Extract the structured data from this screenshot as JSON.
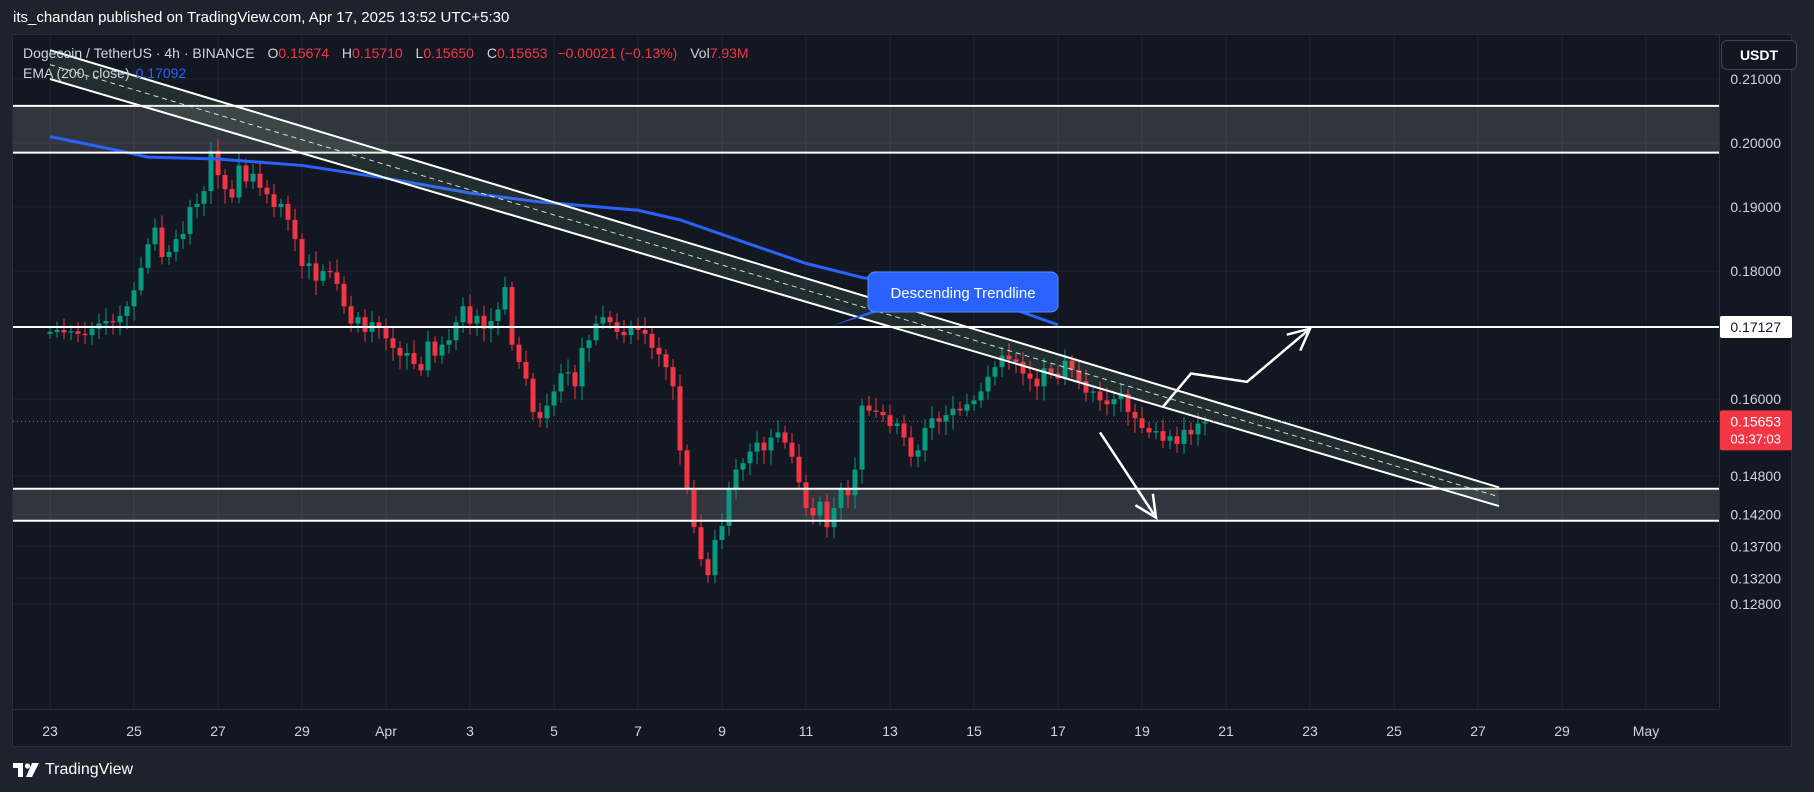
{
  "publisher_line": "its_chandan published on TradingView.com, Apr 17, 2025 13:52 UTC+5:30",
  "legend": {
    "symbol": "Dogecoin / TetherUS · 4h · BINANCE",
    "open_label": "O",
    "open_value": "0.15674",
    "high_label": "H",
    "high_value": "0.15710",
    "low_label": "L",
    "low_value": "0.15650",
    "close_label": "C",
    "close_value": "0.15653",
    "change": "−0.00021 (−0.13%)",
    "vol_label": "Vol",
    "vol_value": "7.93M",
    "ema_label": "EMA (200, close)",
    "ema_value": "0.17092"
  },
  "currency_button": "USDT",
  "branding": "TradingView",
  "colors": {
    "background": "#131722",
    "up": "#089981",
    "down": "#f23645",
    "ema": "#2962ff",
    "annotation": "#ffffff",
    "callout": "#2962ff",
    "grid": "#1f2330",
    "text": "#d1d4dc"
  },
  "chart_data": {
    "type": "candlestick",
    "symbol": "Dogecoin / TetherUS",
    "interval": "4h",
    "exchange": "BINANCE",
    "ylim": [
      0.1255,
      0.2135
    ],
    "y_ticks": [
      "0.21000",
      "0.20000",
      "0.19000",
      "0.18000",
      "0.16000",
      "0.14800",
      "0.14200",
      "0.13700",
      "0.13200",
      "0.12800"
    ],
    "y_tick_values": [
      0.21,
      0.2,
      0.19,
      0.18,
      0.16,
      0.148,
      0.142,
      0.137,
      0.132,
      0.128
    ],
    "x_ticks": [
      {
        "label": "23",
        "t": 0
      },
      {
        "label": "25",
        "t": 12
      },
      {
        "label": "27",
        "t": 24
      },
      {
        "label": "29",
        "t": 36
      },
      {
        "label": "Apr",
        "t": 48
      },
      {
        "label": "3",
        "t": 60
      },
      {
        "label": "5",
        "t": 72
      },
      {
        "label": "7",
        "t": 84
      },
      {
        "label": "9",
        "t": 96
      },
      {
        "label": "11",
        "t": 108
      },
      {
        "label": "13",
        "t": 120
      },
      {
        "label": "15",
        "t": 132
      },
      {
        "label": "17",
        "t": 144
      },
      {
        "label": "19",
        "t": 156
      },
      {
        "label": "21",
        "t": 168
      },
      {
        "label": "23",
        "t": 180
      },
      {
        "label": "25",
        "t": 192
      },
      {
        "label": "27",
        "t": 204
      },
      {
        "label": "29",
        "t": 216
      },
      {
        "label": "May",
        "t": 228
      }
    ],
    "candles_close": [
      0.1705,
      0.1708,
      0.1704,
      0.1706,
      0.1702,
      0.17,
      0.171,
      0.1718,
      0.1722,
      0.172,
      0.173,
      0.1745,
      0.177,
      0.1805,
      0.1842,
      0.1868,
      0.1822,
      0.183,
      0.185,
      0.1858,
      0.19,
      0.1905,
      0.1925,
      0.1988,
      0.195,
      0.1928,
      0.1915,
      0.1965,
      0.194,
      0.1952,
      0.193,
      0.192,
      0.19,
      0.1905,
      0.188,
      0.185,
      0.1808,
      0.1812,
      0.1785,
      0.18,
      0.1798,
      0.178,
      0.1745,
      0.1718,
      0.1728,
      0.1705,
      0.172,
      0.1712,
      0.1695,
      0.168,
      0.1668,
      0.1672,
      0.1655,
      0.1645,
      0.169,
      0.1668,
      0.1685,
      0.1692,
      0.172,
      0.1745,
      0.1718,
      0.173,
      0.171,
      0.1722,
      0.174,
      0.1775,
      0.1685,
      0.1658,
      0.1632,
      0.158,
      0.157,
      0.159,
      0.1612,
      0.164,
      0.1642,
      0.162,
      0.168,
      0.1692,
      0.1718,
      0.1728,
      0.172,
      0.1705,
      0.17,
      0.1712,
      0.1708,
      0.1702,
      0.168,
      0.167,
      0.165,
      0.162,
      0.152,
      0.146,
      0.14,
      0.135,
      0.1325,
      0.138,
      0.1402,
      0.146,
      0.149,
      0.15,
      0.1518,
      0.1532,
      0.152,
      0.154,
      0.1548,
      0.1532,
      0.151,
      0.147,
      0.143,
      0.1418,
      0.144,
      0.14,
      0.143,
      0.146,
      0.145,
      0.149,
      0.159,
      0.1582,
      0.158,
      0.1575,
      0.1558,
      0.1562,
      0.154,
      0.151,
      0.152,
      0.1555,
      0.157,
      0.1565,
      0.1575,
      0.1585,
      0.1582,
      0.1592,
      0.1598,
      0.1612,
      0.1635,
      0.165,
      0.1668,
      0.1662,
      0.1658,
      0.164,
      0.1632,
      0.162,
      0.1648,
      0.164,
      0.1632,
      0.166,
      0.1645,
      0.1628,
      0.161,
      0.1612,
      0.1598,
      0.1592,
      0.16,
      0.1608,
      0.158,
      0.157,
      0.1555,
      0.1548,
      0.155,
      0.1535,
      0.1542,
      0.153,
      0.1552,
      0.1545,
      0.1562,
      0.1565
    ],
    "ema200": [
      {
        "t": 0,
        "v": 0.201
      },
      {
        "t": 9,
        "v": 0.199
      },
      {
        "t": 14,
        "v": 0.1978
      },
      {
        "t": 24,
        "v": 0.1975
      },
      {
        "t": 36,
        "v": 0.1965
      },
      {
        "t": 48,
        "v": 0.1945
      },
      {
        "t": 60,
        "v": 0.1922
      },
      {
        "t": 70,
        "v": 0.1908
      },
      {
        "t": 84,
        "v": 0.1895
      },
      {
        "t": 90,
        "v": 0.188
      },
      {
        "t": 100,
        "v": 0.1842
      },
      {
        "t": 108,
        "v": 0.1812
      },
      {
        "t": 116,
        "v": 0.179
      },
      {
        "t": 126,
        "v": 0.1775
      },
      {
        "t": 134,
        "v": 0.1755
      },
      {
        "t": 144,
        "v": 0.1716
      }
    ],
    "last_price": {
      "value": 0.15653,
      "label": "0.15653",
      "countdown": "03:37:03"
    },
    "level_labels": [
      {
        "value": 0.17127,
        "label": "0.17127"
      }
    ],
    "horizontal_levels": [
      0.2058,
      0.1985,
      0.17127,
      0.146,
      0.141
    ],
    "zones": [
      {
        "top": 0.2058,
        "bottom": 0.1985
      },
      {
        "top": 0.146,
        "bottom": 0.141
      }
    ],
    "trendline_channel": {
      "upper": [
        {
          "t": 0,
          "v": 0.2145
        },
        {
          "t": 207,
          "v": 0.1462
        }
      ],
      "lower": [
        {
          "t": 0,
          "v": 0.21
        },
        {
          "t": 207,
          "v": 0.1433
        }
      ]
    },
    "projections": [
      {
        "direction": "up",
        "points": [
          {
            "t": 159,
            "v": 0.1588
          },
          {
            "t": 163,
            "v": 0.164
          },
          {
            "t": 171,
            "v": 0.1627
          },
          {
            "t": 180,
            "v": 0.171
          }
        ]
      },
      {
        "direction": "down",
        "points": [
          {
            "t": 150,
            "v": 0.1548
          },
          {
            "t": 158,
            "v": 0.1415
          }
        ]
      }
    ],
    "callouts": [
      {
        "text": "Descending Trendline",
        "t": 112,
        "v": 0.1718
      }
    ]
  }
}
